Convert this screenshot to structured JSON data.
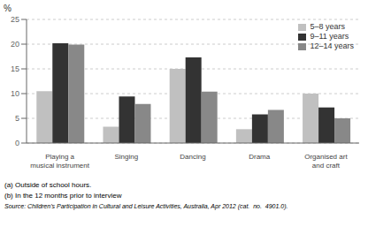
{
  "chart_data": {
    "type": "bar",
    "categories": [
      "Playing a\nmusical instrument",
      "Singing",
      "Dancing",
      "Drama",
      "Organised art\nand craft"
    ],
    "series": [
      {
        "name": "5–8 years",
        "color": "#c0c0c0",
        "values": [
          10.5,
          3.3,
          15.0,
          2.8,
          10.0
        ]
      },
      {
        "name": "9–11 years",
        "color": "#333333",
        "values": [
          20.2,
          9.4,
          17.3,
          5.8,
          7.2
        ]
      },
      {
        "name": "12–14 years",
        "color": "#888888",
        "values": [
          19.9,
          7.9,
          10.4,
          6.7,
          5.0
        ]
      }
    ],
    "ylabel": "%",
    "ylim": [
      0,
      25
    ],
    "yticks": [
      0,
      5,
      10,
      15,
      20,
      25
    ],
    "grid": true,
    "legend": "upper right",
    "annotations": [
      "(a) Outside of school hours.",
      "(b) In the 12 months prior to interview",
      "Source: Children’s Participation in Cultural and Leisure Activities, Australia, Apr 2012 (cat.  no.  4901.0)."
    ]
  }
}
